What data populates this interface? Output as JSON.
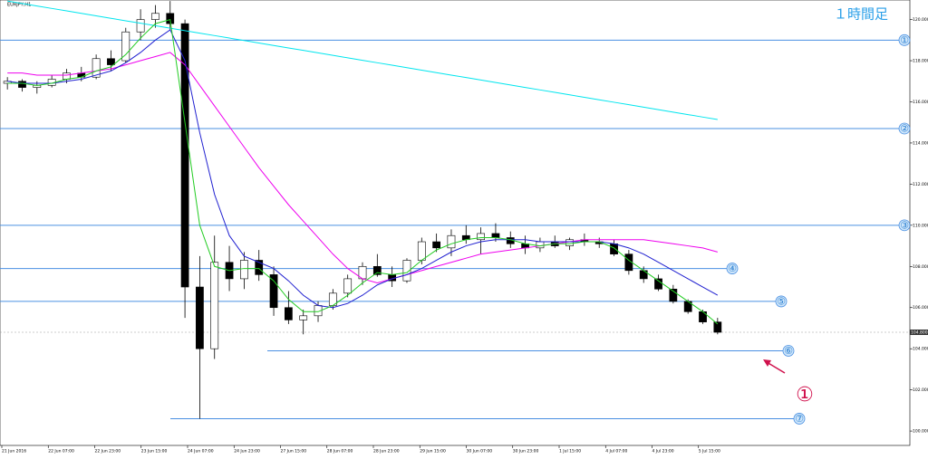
{
  "chart_data": {
    "type": "candlestick",
    "title": "EURJPY,H1",
    "timeframe_label": "１時間足",
    "ylim": [
      99.3,
      120.95
    ],
    "yticks": [
      {
        "value": 100,
        "label": "100.000"
      },
      {
        "value": 102,
        "label": "102.000"
      },
      {
        "value": 104,
        "label": "104.000"
      },
      {
        "value": 106,
        "label": "106.000"
      },
      {
        "value": 108,
        "label": "108.000"
      },
      {
        "value": 110,
        "label": "110.000"
      },
      {
        "value": 112,
        "label": "112.000"
      },
      {
        "value": 114,
        "label": "114.000"
      },
      {
        "value": 116,
        "label": "116.000"
      },
      {
        "value": 118,
        "label": "118.000"
      },
      {
        "value": 120,
        "label": "120.000"
      }
    ],
    "x_labels": [
      "21 Jun 2016",
      "22 Jun 07:00",
      "22 Jun 23:00",
      "23 Jun 15:00",
      "24 Jun 07:00",
      "24 Jun 23:00",
      "27 Jun 15:00",
      "28 Jun 07:00",
      "28 Jun 23:00",
      "29 Jun 15:00",
      "30 Jun 07:00",
      "30 Jun 23:00",
      "1 Jul 15:00",
      "4 Jul 07:00",
      "4 Jul 23:00",
      "5 Jul 15:00"
    ],
    "ohlc": [
      [
        116.9,
        117.2,
        116.6,
        117.0
      ],
      [
        117.0,
        117.1,
        116.5,
        116.7
      ],
      [
        116.7,
        117.0,
        116.4,
        116.8
      ],
      [
        116.8,
        117.3,
        116.7,
        117.1
      ],
      [
        117.1,
        117.6,
        116.9,
        117.4
      ],
      [
        117.4,
        117.7,
        117.0,
        117.2
      ],
      [
        117.2,
        118.3,
        117.1,
        118.1
      ],
      [
        118.1,
        118.5,
        117.5,
        117.8
      ],
      [
        118.0,
        119.6,
        117.9,
        119.4
      ],
      [
        119.4,
        120.5,
        119.0,
        120.0
      ],
      [
        120.0,
        120.7,
        119.6,
        120.3
      ],
      [
        120.3,
        120.9,
        119.5,
        119.8
      ],
      [
        119.8,
        120.0,
        105.5,
        107.0
      ],
      [
        107.0,
        108.5,
        100.6,
        104.0
      ],
      [
        104.0,
        109.5,
        103.5,
        108.2
      ],
      [
        108.2,
        109.0,
        106.8,
        107.4
      ],
      [
        107.4,
        108.7,
        106.9,
        108.3
      ],
      [
        108.3,
        108.8,
        107.3,
        107.6
      ],
      [
        107.6,
        108.0,
        105.6,
        106.0
      ],
      [
        106.0,
        106.8,
        105.2,
        105.4
      ],
      [
        105.4,
        105.9,
        104.7,
        105.6
      ],
      [
        105.6,
        106.3,
        105.3,
        106.1
      ],
      [
        106.1,
        106.9,
        105.9,
        106.7
      ],
      [
        106.7,
        107.6,
        106.5,
        107.4
      ],
      [
        107.4,
        108.2,
        107.1,
        108.0
      ],
      [
        108.0,
        108.6,
        107.5,
        107.6
      ],
      [
        107.6,
        108.0,
        107.0,
        107.3
      ],
      [
        107.3,
        108.4,
        107.2,
        108.3
      ],
      [
        108.3,
        109.4,
        108.1,
        109.2
      ],
      [
        109.2,
        109.6,
        108.7,
        108.9
      ],
      [
        108.9,
        109.8,
        108.5,
        109.5
      ],
      [
        109.5,
        110.0,
        109.1,
        109.3
      ],
      [
        109.3,
        109.9,
        108.6,
        109.6
      ],
      [
        109.6,
        110.1,
        109.2,
        109.4
      ],
      [
        109.4,
        109.7,
        108.9,
        109.1
      ],
      [
        109.1,
        109.5,
        108.6,
        108.9
      ],
      [
        108.9,
        109.4,
        108.7,
        109.2
      ],
      [
        109.2,
        109.5,
        108.9,
        109.0
      ],
      [
        109.0,
        109.4,
        108.8,
        109.3
      ],
      [
        109.3,
        109.6,
        109.0,
        109.2
      ],
      [
        109.2,
        109.4,
        108.9,
        109.1
      ],
      [
        109.1,
        109.3,
        108.5,
        108.6
      ],
      [
        108.6,
        108.8,
        107.6,
        107.8
      ],
      [
        107.8,
        108.0,
        107.2,
        107.4
      ],
      [
        107.4,
        107.6,
        106.8,
        106.9
      ],
      [
        106.9,
        107.1,
        106.2,
        106.3
      ],
      [
        106.3,
        106.4,
        105.7,
        105.8
      ],
      [
        105.8,
        105.9,
        105.2,
        105.3
      ],
      [
        105.3,
        105.5,
        104.7,
        104.8
      ]
    ],
    "overlays": [
      {
        "color": "#00e5ee",
        "values": [
          120.9,
          120.78,
          120.66,
          120.54,
          120.42,
          120.3,
          120.18,
          120.06,
          119.94,
          119.82,
          119.7,
          119.58,
          119.46,
          119.34,
          119.22,
          119.1,
          118.98,
          118.86,
          118.74,
          118.62,
          118.5,
          118.38,
          118.26,
          118.14,
          118.02,
          117.9,
          117.78,
          117.66,
          117.54,
          117.42,
          117.3,
          117.18,
          117.06,
          116.94,
          116.82,
          116.7,
          116.58,
          116.46,
          116.34,
          116.22,
          116.1,
          115.98,
          115.86,
          115.74,
          115.62,
          115.5,
          115.38,
          115.26,
          115.14
        ]
      },
      {
        "color": "#ee00ee",
        "values": [
          117.4,
          117.4,
          117.3,
          117.3,
          117.3,
          117.4,
          117.5,
          117.6,
          117.8,
          118.0,
          118.2,
          118.4,
          117.8,
          116.8,
          115.8,
          114.8,
          113.8,
          112.8,
          111.9,
          111.0,
          110.2,
          109.4,
          108.6,
          107.9,
          107.4,
          107.2,
          107.4,
          107.6,
          107.8,
          108.0,
          108.2,
          108.4,
          108.6,
          108.7,
          108.8,
          108.9,
          109.0,
          109.1,
          109.2,
          109.3,
          109.3,
          109.3,
          109.3,
          109.3,
          109.2,
          109.1,
          109.0,
          108.9,
          108.7
        ]
      },
      {
        "color": "#2020d0",
        "values": [
          117.0,
          116.9,
          116.9,
          116.9,
          117.0,
          117.1,
          117.3,
          117.5,
          117.9,
          118.4,
          119.0,
          119.5,
          118.0,
          114.5,
          111.5,
          109.5,
          108.5,
          108.2,
          107.9,
          107.3,
          106.6,
          106.1,
          106.0,
          106.2,
          106.6,
          107.1,
          107.4,
          107.6,
          107.9,
          108.3,
          108.7,
          109.0,
          109.2,
          109.3,
          109.3,
          109.3,
          109.2,
          109.2,
          109.2,
          109.2,
          109.2,
          109.1,
          108.9,
          108.6,
          108.2,
          107.8,
          107.4,
          107.0,
          106.6
        ]
      },
      {
        "color": "#22cc22",
        "values": [
          116.9,
          116.9,
          116.8,
          116.9,
          117.1,
          117.2,
          117.5,
          117.7,
          118.3,
          119.1,
          119.8,
          120.0,
          115.0,
          110.0,
          108.0,
          107.8,
          107.9,
          107.9,
          107.3,
          106.4,
          105.8,
          105.8,
          106.1,
          106.6,
          107.2,
          107.7,
          107.6,
          107.7,
          108.3,
          108.8,
          109.1,
          109.3,
          109.4,
          109.4,
          109.3,
          109.1,
          109.0,
          109.1,
          109.1,
          109.2,
          109.2,
          108.9,
          108.3,
          107.8,
          107.3,
          106.8,
          106.3,
          105.8,
          105.2
        ]
      }
    ],
    "levels": [
      {
        "label": "①",
        "value": 119.0
      },
      {
        "label": "②",
        "value": 114.7
      },
      {
        "label": "③",
        "value": 110.0
      },
      {
        "label": "④",
        "value": 107.9
      },
      {
        "label": "⑤",
        "value": 106.3
      },
      {
        "label": "⑥",
        "value": 103.9
      },
      {
        "label": "⑦",
        "value": 100.6
      }
    ],
    "current_price": {
      "value": 104.8,
      "label": "104.800"
    },
    "annotation": "①",
    "level_color": "#4a90e2",
    "annotation_color": "#d0104c"
  }
}
